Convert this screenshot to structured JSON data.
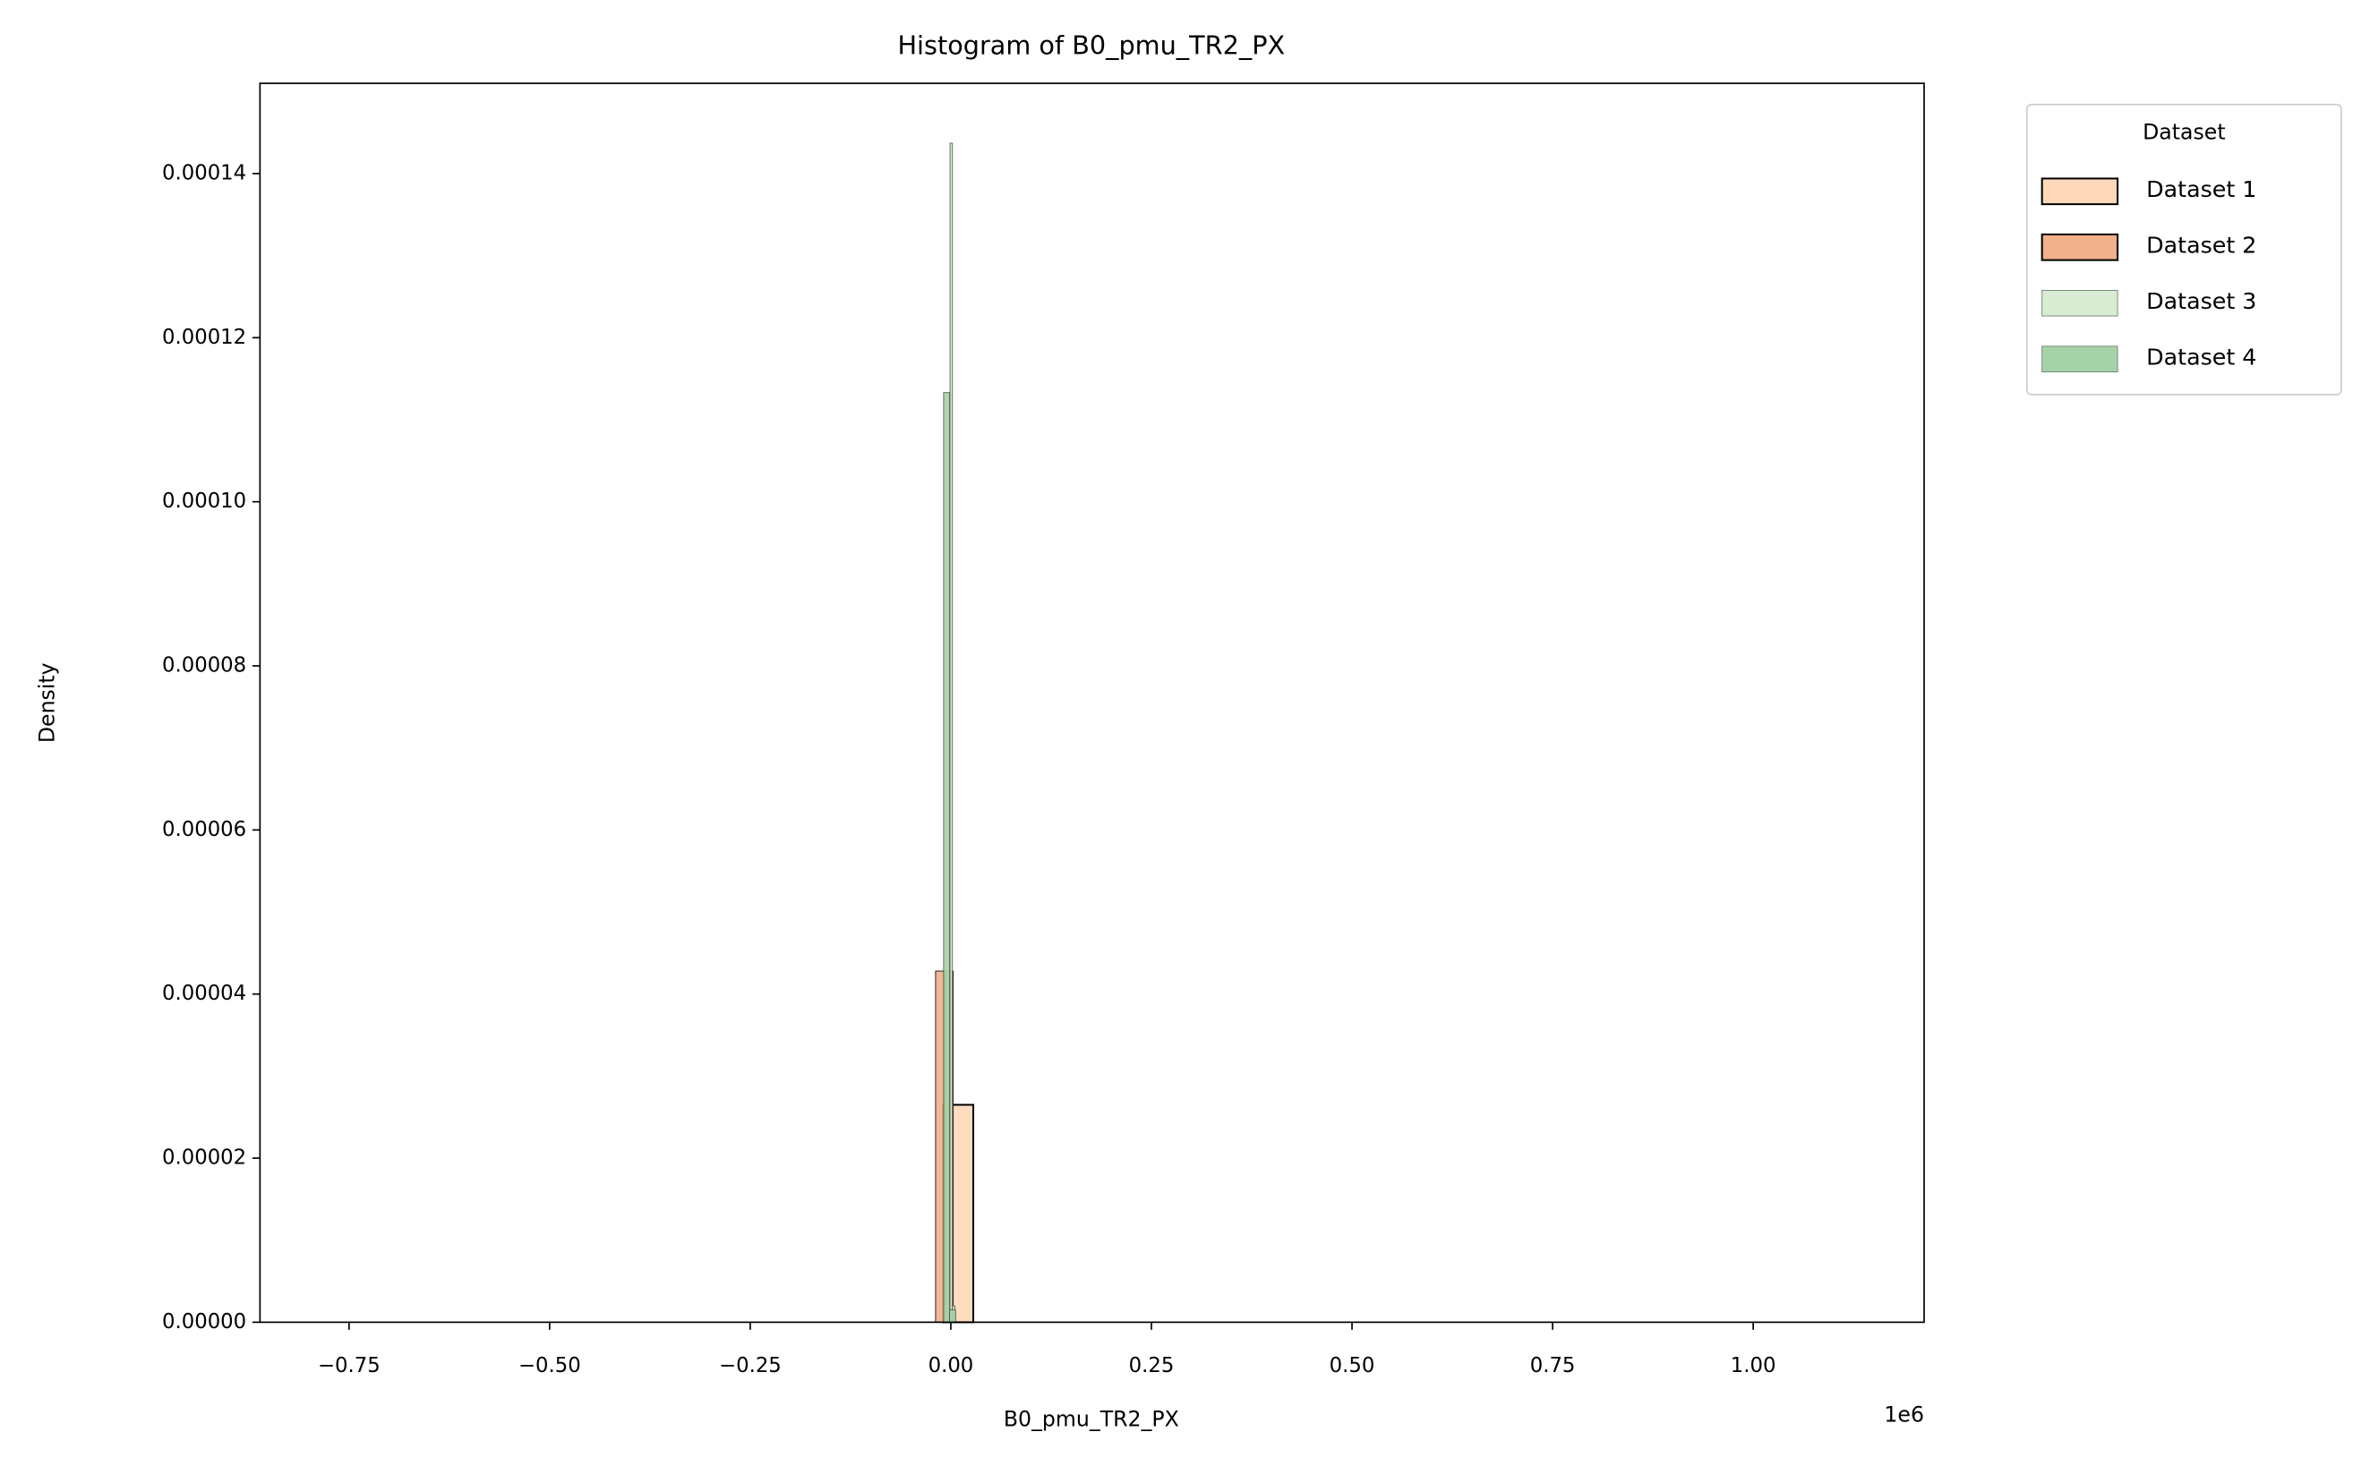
{
  "chart_data": {
    "type": "histogram",
    "title": "Histogram of B0_pmu_TR2_PX",
    "x_label": "B0_pmu_TR2_PX",
    "y_label": "Density",
    "x_offset_label": "1e6",
    "legend_title": "Dataset",
    "legend_position": "outside-upper-right",
    "xlim": [
      -861000,
      1213000
    ],
    "ylim": [
      0,
      0.000151
    ],
    "xticks": [
      {
        "value": -750000,
        "label": "−0.75"
      },
      {
        "value": -500000,
        "label": "−0.50"
      },
      {
        "value": -250000,
        "label": "−0.25"
      },
      {
        "value": 0,
        "label": "0.00"
      },
      {
        "value": 250000,
        "label": "0.25"
      },
      {
        "value": 500000,
        "label": "0.50"
      },
      {
        "value": 750000,
        "label": "0.75"
      },
      {
        "value": 1000000,
        "label": "1.00"
      }
    ],
    "yticks": [
      {
        "value": 0,
        "label": "0.00000"
      },
      {
        "value": 2e-05,
        "label": "0.00002"
      },
      {
        "value": 4e-05,
        "label": "0.00004"
      },
      {
        "value": 6e-05,
        "label": "0.00006"
      },
      {
        "value": 8e-05,
        "label": "0.00008"
      },
      {
        "value": 0.0001,
        "label": "0.00010"
      },
      {
        "value": 0.00012,
        "label": "0.00012"
      },
      {
        "value": 0.00014,
        "label": "0.00014"
      }
    ],
    "series": [
      {
        "name": "Dataset 1",
        "color": "#fdd8b8",
        "bins": [
          -770000,
          -732000,
          -694000,
          -656000,
          -618000,
          -580000,
          -542000,
          -504000,
          -466000,
          -428000,
          -390000,
          -352000,
          -314000,
          -276000,
          -238000,
          -200000,
          -162000,
          -124000,
          -86000,
          -48000,
          -10000,
          28000,
          66000,
          104000,
          142000,
          180000,
          218000,
          256000,
          294000,
          332000,
          370000,
          408000,
          446000,
          484000,
          522000,
          560000,
          598000,
          636000,
          674000,
          712000,
          750000,
          788000,
          826000,
          864000,
          902000,
          940000,
          978000,
          1016000,
          1054000,
          1092000,
          1130000
        ],
        "values": [
          0,
          0,
          0,
          0,
          0,
          0,
          0,
          0,
          0,
          0,
          0,
          0,
          0,
          0,
          0,
          0,
          0,
          0,
          0,
          0,
          2.65e-05,
          0,
          0,
          0,
          0,
          0,
          0,
          0,
          0,
          0,
          0,
          0,
          0,
          0,
          0,
          0,
          0,
          0,
          0,
          0,
          0,
          0,
          0,
          0,
          0,
          0,
          0,
          0,
          0,
          0
        ]
      },
      {
        "name": "Dataset 2",
        "color": "#f2b08c",
        "bins": [
          -19000,
          -8000,
          3000
        ],
        "values": [
          4.28e-05,
          4.28e-05
        ]
      },
      {
        "name": "Dataset 3",
        "color": "#d7ecd2",
        "bins": [
          -4000,
          -1000,
          2000,
          5000
        ],
        "values": [
          1e-06,
          0.0001437,
          2e-06
        ]
      },
      {
        "name": "Dataset 4",
        "color": "#a6d2a9",
        "bins": [
          -9000,
          -1500,
          6000
        ],
        "values": [
          0.0001133,
          1.5e-06
        ]
      }
    ]
  }
}
